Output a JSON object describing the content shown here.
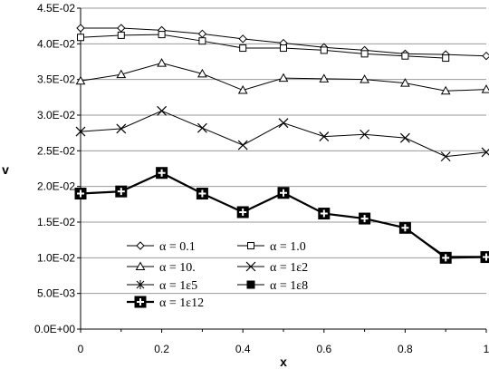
{
  "chart_data": {
    "type": "line",
    "title": "",
    "xlabel": "x",
    "ylabel": "v",
    "xlim": [
      0,
      1
    ],
    "ylim": [
      0,
      0.045
    ],
    "grid": "horizontal",
    "legend_position": "bottom-center",
    "x_ticks": [
      "0",
      "0.2",
      "0.4",
      "0.6",
      "0.8",
      "1"
    ],
    "y_ticks": [
      "0.0E+00",
      "5.0E-03",
      "1.0E-02",
      "1.5E-02",
      "2.0E-02",
      "2.5E-02",
      "3.0E-02",
      "3.5E-02",
      "4.0E-02",
      "4.5E-02"
    ],
    "x": [
      0,
      0.1,
      0.2,
      0.3,
      0.4,
      0.5,
      0.6,
      0.7,
      0.8,
      0.9,
      1.0
    ],
    "series": [
      {
        "name": "α = 0.1",
        "marker": "diamond",
        "values": [
          0.0422,
          0.0422,
          0.0419,
          0.0414,
          0.0407,
          0.0401,
          0.0395,
          0.0391,
          0.0386,
          0.0385,
          0.0383
        ]
      },
      {
        "name": "α = 1.0",
        "marker": "square",
        "values": [
          0.0409,
          0.0412,
          0.0413,
          0.0404,
          0.0394,
          0.0394,
          0.0391,
          0.0386,
          0.0383,
          0.038,
          null
        ]
      },
      {
        "name": "α = 10.",
        "marker": "triangle",
        "values": [
          0.0348,
          0.0357,
          0.0373,
          0.0358,
          0.0335,
          0.0352,
          0.0351,
          0.035,
          0.0345,
          0.0334,
          0.0336
        ]
      },
      {
        "name": "α = 1ε2",
        "marker": "x",
        "values": [
          0.0277,
          0.0281,
          0.0306,
          0.0282,
          0.0258,
          0.0289,
          0.027,
          0.0273,
          0.0268,
          0.0242,
          0.0248
        ]
      },
      {
        "name": "α = 1ε5",
        "marker": "star",
        "values": [
          0.019,
          0.0193,
          0.0219,
          0.019,
          0.0164,
          0.0191,
          0.0162,
          0.0155,
          0.0142,
          0.0102,
          0.0102
        ]
      },
      {
        "name": "α = 1ε8",
        "marker": "filled-square",
        "values": [
          0.019,
          0.0193,
          0.0219,
          0.019,
          0.0164,
          0.0191,
          0.0162,
          0.0155,
          0.0142,
          0.01,
          0.0101
        ]
      },
      {
        "name": "α = 1ε12",
        "marker": "plus-square",
        "values": [
          0.019,
          0.0193,
          0.0219,
          0.019,
          0.0164,
          0.0191,
          0.0162,
          0.0155,
          0.0142,
          0.01,
          0.0101
        ]
      }
    ]
  }
}
